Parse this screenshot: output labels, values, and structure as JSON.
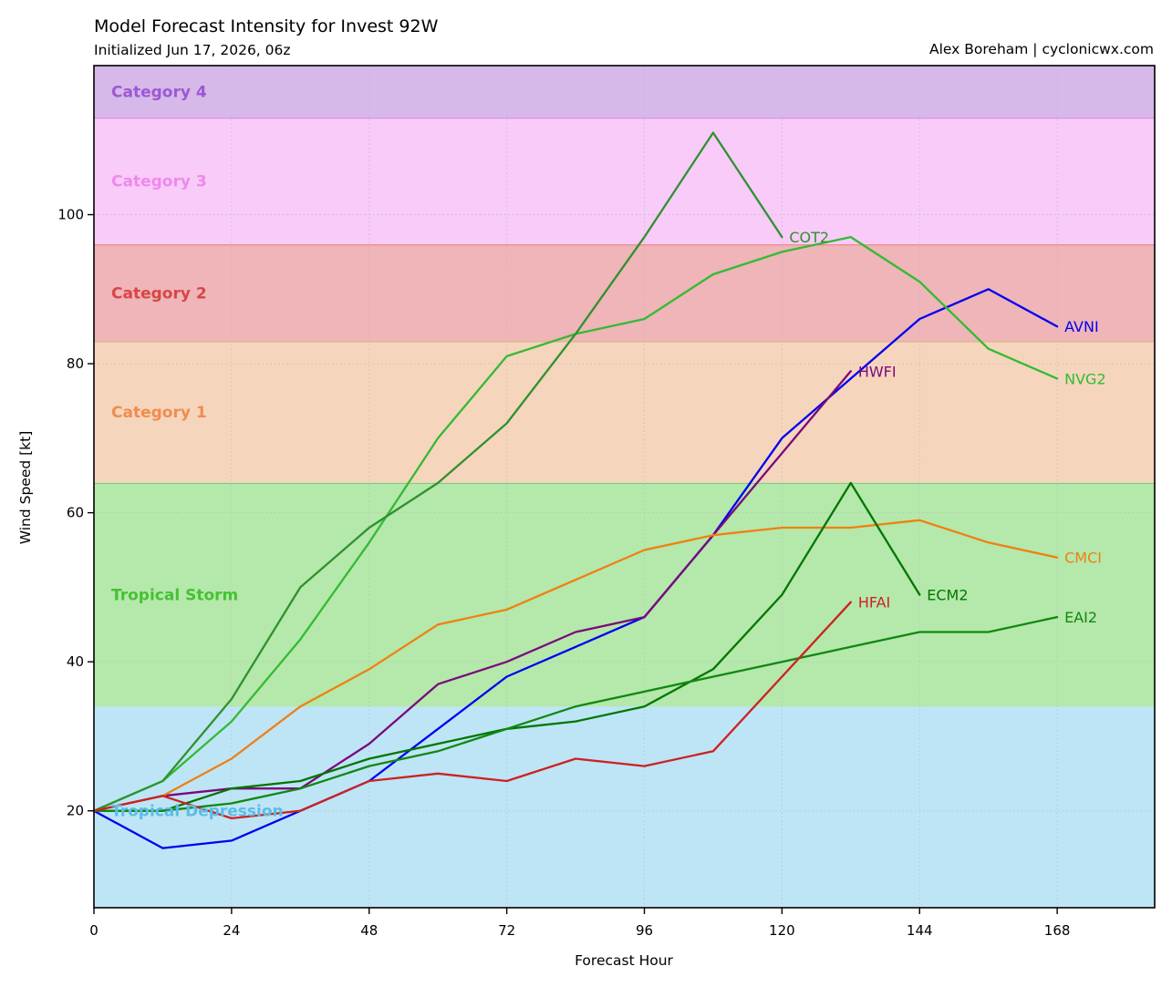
{
  "chart_data": {
    "type": "line",
    "title": "Model Forecast Intensity for Invest 92W",
    "subtitle": "Initialized Jun 17, 2026, 06z",
    "credit": "Alex Boreham | cyclonicwx.com",
    "xlabel": "Forecast Hour",
    "ylabel": "Wind Speed [kt]",
    "xlim": [
      0,
      185
    ],
    "ylim": [
      7,
      120
    ],
    "xticks": [
      0,
      24,
      48,
      72,
      96,
      120,
      144,
      168
    ],
    "yticks": [
      20,
      40,
      60,
      80,
      100
    ],
    "grid": true,
    "bands": [
      {
        "label": "Tropical Depression",
        "from": 7,
        "to": 34,
        "fill": "#bee5f6",
        "edge": "#bee5f6",
        "text_color": "#5bbde6"
      },
      {
        "label": "Tropical Storm",
        "from": 34,
        "to": 64,
        "fill": "#b5e8ab",
        "edge": "#6ccf7c",
        "text_color": "#45c232"
      },
      {
        "label": "Category 1",
        "from": 64,
        "to": 83,
        "fill": "#f6d5bd",
        "edge": "#d5b27a",
        "text_color": "#ef8d4e"
      },
      {
        "label": "Category 2",
        "from": 83,
        "to": 96,
        "fill": "#efb5b8",
        "edge": "#ec7777",
        "text_color": "#d84545"
      },
      {
        "label": "Category 3",
        "from": 96,
        "to": 113,
        "fill": "#f8cbf9",
        "edge": "#e581ec",
        "text_color": "#f088ec"
      },
      {
        "label": "Category 4",
        "from": 113,
        "to": 120,
        "fill": "#d6b9e9",
        "edge": "#b484de",
        "text_color": "#9c58d3"
      }
    ],
    "series": [
      {
        "name": "AVNI",
        "color": "#0000ee",
        "x": [
          0,
          12,
          24,
          36,
          48,
          60,
          72,
          84,
          96,
          108,
          120,
          132,
          144,
          156,
          168
        ],
        "y": [
          20,
          15,
          16,
          20,
          24,
          31,
          38,
          42,
          46,
          57,
          70,
          78,
          86,
          90,
          85
        ]
      },
      {
        "name": "NVG2",
        "color": "#33bb33",
        "x": [
          0,
          12,
          24,
          36,
          48,
          60,
          72,
          84,
          96,
          108,
          120,
          132,
          144,
          156,
          168
        ],
        "y": [
          20,
          24,
          32,
          43,
          56,
          70,
          81,
          84,
          86,
          92,
          95,
          97,
          91,
          82,
          78
        ]
      },
      {
        "name": "COT2",
        "color": "#2e922e",
        "x": [
          0,
          12,
          24,
          36,
          48,
          60,
          72,
          84,
          96,
          108,
          120
        ],
        "y": [
          20,
          24,
          35,
          50,
          58,
          64,
          72,
          84,
          97,
          111,
          97
        ]
      },
      {
        "name": "HWFI",
        "color": "#7a0a7a",
        "x": [
          0,
          12,
          24,
          36,
          48,
          60,
          72,
          84,
          96,
          108,
          120,
          132
        ],
        "y": [
          20,
          22,
          23,
          23,
          29,
          37,
          40,
          44,
          46,
          57,
          68,
          79
        ]
      },
      {
        "name": "CMCI",
        "color": "#f08010",
        "x": [
          0,
          12,
          24,
          36,
          48,
          60,
          72,
          84,
          96,
          108,
          120,
          132,
          144,
          156,
          168
        ],
        "y": [
          20,
          22,
          27,
          34,
          39,
          45,
          47,
          51,
          55,
          57,
          58,
          58,
          59,
          56,
          54
        ]
      },
      {
        "name": "ECM2",
        "color": "#007700",
        "x": [
          0,
          12,
          24,
          36,
          48,
          60,
          72,
          84,
          96,
          108,
          120,
          132,
          144
        ],
        "y": [
          20,
          20,
          23,
          24,
          27,
          29,
          31,
          32,
          34,
          39,
          49,
          64,
          49
        ]
      },
      {
        "name": "EAI2",
        "color": "#118811",
        "x": [
          0,
          12,
          24,
          36,
          48,
          60,
          72,
          84,
          96,
          108,
          120,
          132,
          144,
          156,
          168
        ],
        "y": [
          20,
          20,
          21,
          23,
          26,
          28,
          31,
          34,
          36,
          38,
          40,
          42,
          44,
          44,
          46
        ]
      },
      {
        "name": "HFAI",
        "color": "#cc2222",
        "x": [
          0,
          12,
          24,
          36,
          48,
          60,
          72,
          84,
          96,
          108,
          120,
          132
        ],
        "y": [
          20,
          22,
          19,
          20,
          24,
          25,
          24,
          27,
          26,
          28,
          38,
          48
        ]
      }
    ]
  }
}
